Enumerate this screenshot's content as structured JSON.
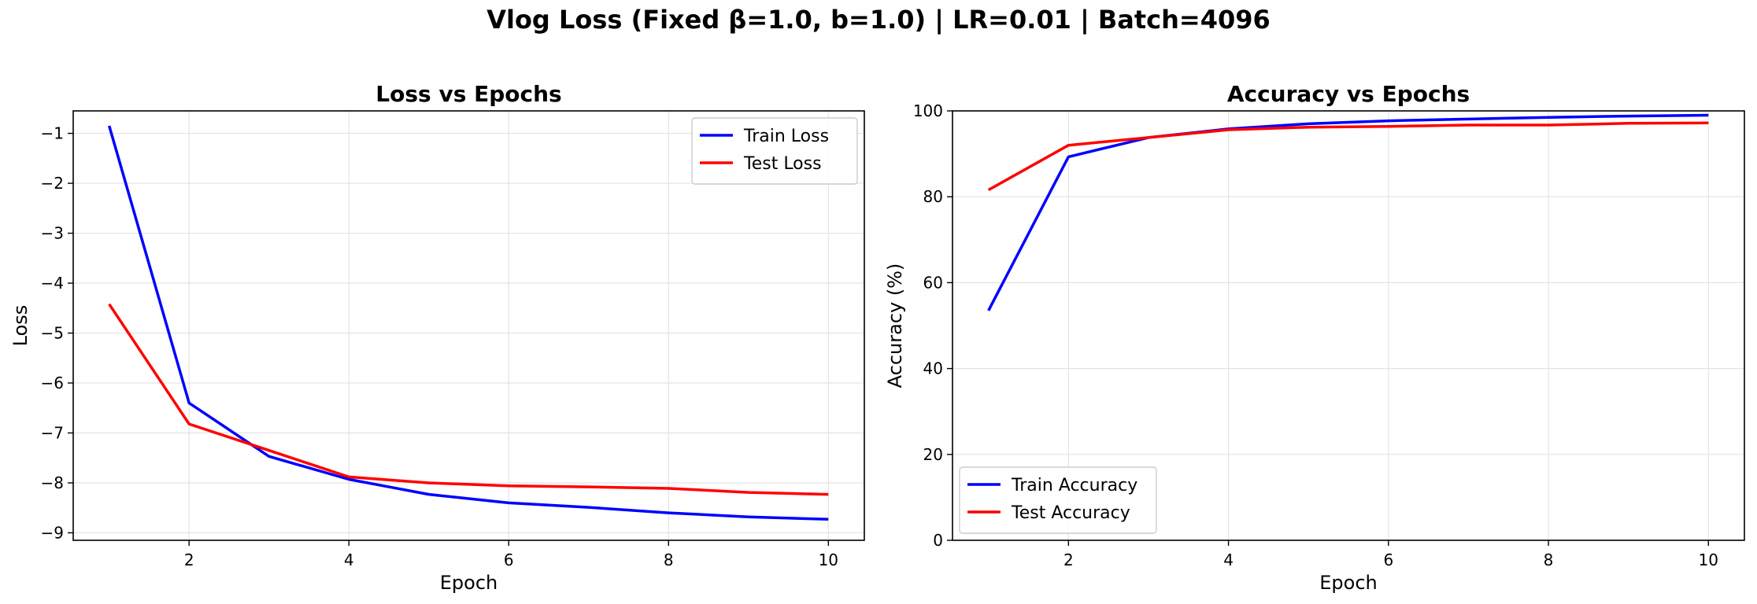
{
  "suptitle": "Vlog Loss (Fixed β=1.0, b=1.0) | LR=0.01 | Batch=4096",
  "chart_data": [
    {
      "type": "line",
      "title": "Loss vs Epochs",
      "xlabel": "Epoch",
      "ylabel": "Loss",
      "x": [
        1,
        2,
        3,
        4,
        5,
        6,
        7,
        8,
        9,
        10
      ],
      "xlim": [
        0.55,
        10.45
      ],
      "ylim": [
        -9.15,
        -0.55
      ],
      "xticks": [
        2,
        4,
        6,
        8,
        10
      ],
      "yticks": [
        -9,
        -8,
        -7,
        -6,
        -5,
        -4,
        -3,
        -2,
        -1
      ],
      "grid": true,
      "legend": "upper right",
      "series": [
        {
          "name": "Train Loss",
          "color": "#0000ff",
          "values": [
            -0.85,
            -6.4,
            -7.47,
            -7.93,
            -8.23,
            -8.4,
            -8.49,
            -8.6,
            -8.68,
            -8.73
          ]
        },
        {
          "name": "Test Loss",
          "color": "#ff0000",
          "values": [
            -4.42,
            -6.82,
            -7.35,
            -7.88,
            -8.0,
            -8.06,
            -8.08,
            -8.11,
            -8.19,
            -8.23
          ]
        }
      ]
    },
    {
      "type": "line",
      "title": "Accuracy vs Epochs",
      "xlabel": "Epoch",
      "ylabel": "Accuracy (%)",
      "x": [
        1,
        2,
        3,
        4,
        5,
        6,
        7,
        8,
        9,
        10
      ],
      "xlim": [
        0.55,
        10.45
      ],
      "ylim": [
        0,
        100
      ],
      "xticks": [
        2,
        4,
        6,
        8,
        10
      ],
      "yticks": [
        0,
        20,
        40,
        60,
        80,
        100
      ],
      "grid": true,
      "legend": "lower left",
      "series": [
        {
          "name": "Train Accuracy",
          "color": "#0000ff",
          "values": [
            53.5,
            89.3,
            93.8,
            95.8,
            97.0,
            97.7,
            98.1,
            98.5,
            98.8,
            99.0
          ]
        },
        {
          "name": "Test Accuracy",
          "color": "#ff0000",
          "values": [
            81.6,
            92.0,
            93.8,
            95.6,
            96.2,
            96.4,
            96.7,
            96.7,
            97.1,
            97.2
          ]
        }
      ]
    }
  ]
}
